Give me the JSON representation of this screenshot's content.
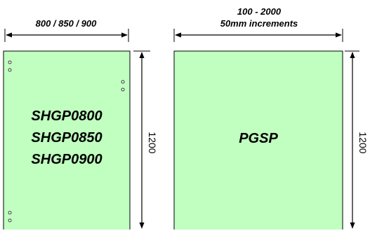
{
  "left_panel": {
    "width_label": "800 / 850 / 900",
    "codes": [
      "SHGP0800",
      "SHGP0850",
      "SHGP0900"
    ],
    "height_label": "1200",
    "fill_color": "#c0ffc0"
  },
  "right_panel": {
    "width_label_line1": "100 - 2000",
    "width_label_line2": "50mm increments",
    "code": "PGSP",
    "height_label": "1200",
    "fill_color": "#c0ffc0"
  }
}
